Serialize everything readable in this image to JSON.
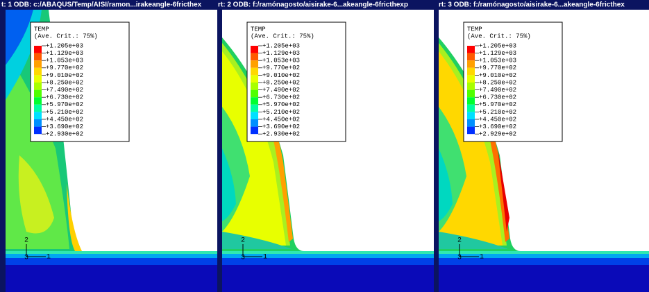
{
  "header": {
    "segments": [
      "t: 1   ODB: c:/ABAQUS/Temp/AISI/ramon...irakeangle-6fricthex",
      "rt: 2   ODB: f:/ramónagosto/aisirake-6...akeangle-6fricthexp",
      "rt: 3   ODB: f:/ramónagosto/aisirake-6...akeangle-6fricthex"
    ]
  },
  "viewports": [
    {
      "legend": {
        "title": "TEMP",
        "criterion": "(Ave. Crit.: 75%)",
        "values": [
          "+1.205e+03",
          "+1.129e+03",
          "+1.053e+03",
          "+9.770e+02",
          "+9.010e+02",
          "+8.250e+02",
          "+7.490e+02",
          "+6.730e+02",
          "+5.970e+02",
          "+5.210e+02",
          "+4.450e+02",
          "+3.690e+02",
          "+2.930e+02"
        ]
      },
      "triad": {
        "axis_2": "2",
        "axis_3": "3",
        "axis_1": "1"
      }
    },
    {
      "legend": {
        "title": "TEMP",
        "criterion": "(Ave. Crit.: 75%)",
        "values": [
          "+1.205e+03",
          "+1.129e+03",
          "+1.053e+03",
          "+9.770e+02",
          "+9.010e+02",
          "+8.250e+02",
          "+7.490e+02",
          "+6.730e+02",
          "+5.970e+02",
          "+5.210e+02",
          "+4.450e+02",
          "+3.690e+02",
          "+2.930e+02"
        ]
      },
      "triad": {
        "axis_2": "2",
        "axis_3": "3",
        "axis_1": "1"
      }
    },
    {
      "legend": {
        "title": "TEMP",
        "criterion": "(Ave. Crit.: 75%)",
        "values": [
          "+1.205e+03",
          "+1.129e+03",
          "+1.053e+03",
          "+9.770e+02",
          "+9.010e+02",
          "+8.250e+02",
          "+7.490e+02",
          "+6.730e+02",
          "+5.970e+02",
          "+5.210e+02",
          "+4.450e+02",
          "+3.690e+02",
          "+2.929e+02"
        ]
      },
      "triad": {
        "axis_2": "2",
        "axis_3": "3",
        "axis_1": "1"
      }
    }
  ]
}
